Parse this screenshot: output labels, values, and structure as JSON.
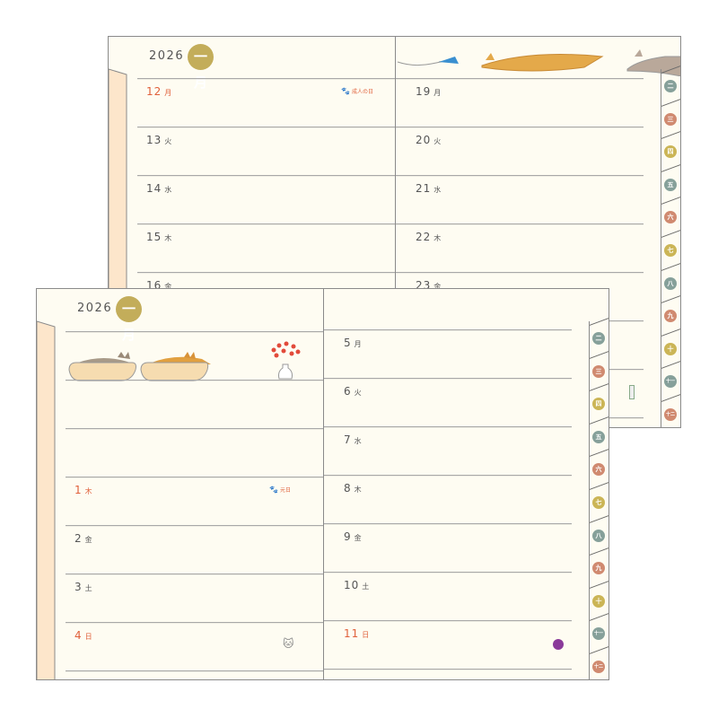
{
  "colors": {
    "paper": "#fefcf2",
    "strip": "#fde6cb",
    "month_badge": "#c3ad5a",
    "holiday_red": "#e0603a",
    "tab_teal": "#86a09a",
    "tab_terracotta": "#d08a70",
    "tab_mustard": "#cbb556"
  },
  "back_spread": {
    "year": "2026",
    "month": "一月",
    "left_days": [
      {
        "num": "12",
        "dow": "月",
        "red": true,
        "holiday": "成人の日"
      },
      {
        "num": "13",
        "dow": "火",
        "red": false
      },
      {
        "num": "14",
        "dow": "水",
        "red": false
      },
      {
        "num": "15",
        "dow": "木",
        "red": false
      },
      {
        "num": "16",
        "dow": "金",
        "red": false
      }
    ],
    "right_days": [
      {
        "num": "19",
        "dow": "月",
        "red": false
      },
      {
        "num": "20",
        "dow": "火",
        "red": false
      },
      {
        "num": "21",
        "dow": "水",
        "red": false
      },
      {
        "num": "22",
        "dow": "木",
        "red": false
      },
      {
        "num": "23",
        "dow": "金",
        "red": false
      }
    ]
  },
  "front_spread": {
    "year": "2026",
    "month": "一月",
    "left_days": [
      {
        "num": "1",
        "dow": "木",
        "red": true,
        "holiday": "元日"
      },
      {
        "num": "2",
        "dow": "金",
        "red": false
      },
      {
        "num": "3",
        "dow": "土",
        "red": false
      },
      {
        "num": "4",
        "dow": "日",
        "red": true
      }
    ],
    "right_days": [
      {
        "num": "5",
        "dow": "月",
        "red": false
      },
      {
        "num": "6",
        "dow": "火",
        "red": false
      },
      {
        "num": "7",
        "dow": "水",
        "red": false
      },
      {
        "num": "8",
        "dow": "木",
        "red": false
      },
      {
        "num": "9",
        "dow": "金",
        "red": false
      },
      {
        "num": "10",
        "dow": "土",
        "red": false
      },
      {
        "num": "11",
        "dow": "日",
        "red": true
      }
    ]
  },
  "month_tabs": [
    {
      "label": "二",
      "color": "#86a09a"
    },
    {
      "label": "三",
      "color": "#d08a70"
    },
    {
      "label": "四",
      "color": "#cbb556"
    },
    {
      "label": "五",
      "color": "#86a09a"
    },
    {
      "label": "六",
      "color": "#d08a70"
    },
    {
      "label": "七",
      "color": "#cbb556"
    },
    {
      "label": "八",
      "color": "#86a09a"
    },
    {
      "label": "九",
      "color": "#d08a70"
    },
    {
      "label": "十",
      "color": "#cbb556"
    },
    {
      "label": "十一",
      "color": "#86a09a"
    },
    {
      "label": "十二",
      "color": "#d08a70"
    }
  ]
}
